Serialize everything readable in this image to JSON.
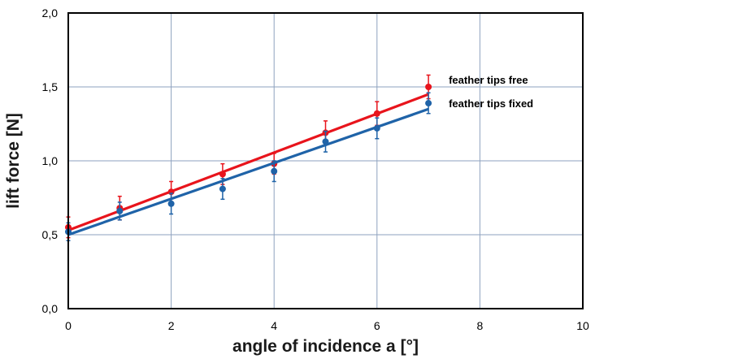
{
  "chart_data": {
    "type": "scatter",
    "xlabel": "angle of incidence a [°]",
    "ylabel": "lift force [N]",
    "xlim": [
      0,
      10
    ],
    "ylim": [
      0,
      2
    ],
    "x_ticks": [
      "0",
      "2",
      "4",
      "6",
      "8",
      "10"
    ],
    "y_ticks": [
      "0,0",
      "0,5",
      "1,0",
      "1,5",
      "2,0"
    ],
    "grid": true,
    "series": [
      {
        "name": "feather tips free",
        "color": "#e8141c",
        "x": [
          0,
          1,
          2,
          3,
          4,
          5,
          6,
          7
        ],
        "y": [
          0.55,
          0.68,
          0.79,
          0.91,
          0.98,
          1.19,
          1.32,
          1.5
        ],
        "err": [
          0.07,
          0.08,
          0.07,
          0.07,
          0.07,
          0.08,
          0.08,
          0.08
        ],
        "fit": {
          "x": [
            0,
            7
          ],
          "y": [
            0.53,
            1.45
          ]
        }
      },
      {
        "name": "feather tips fixed",
        "color": "#1f63a8",
        "x": [
          0,
          1,
          2,
          3,
          4,
          5,
          6,
          7
        ],
        "y": [
          0.52,
          0.66,
          0.71,
          0.81,
          0.93,
          1.13,
          1.22,
          1.39
        ],
        "err": [
          0.06,
          0.06,
          0.07,
          0.07,
          0.07,
          0.07,
          0.07,
          0.07
        ],
        "fit": {
          "x": [
            0,
            7
          ],
          "y": [
            0.5,
            1.35
          ]
        }
      }
    ]
  }
}
